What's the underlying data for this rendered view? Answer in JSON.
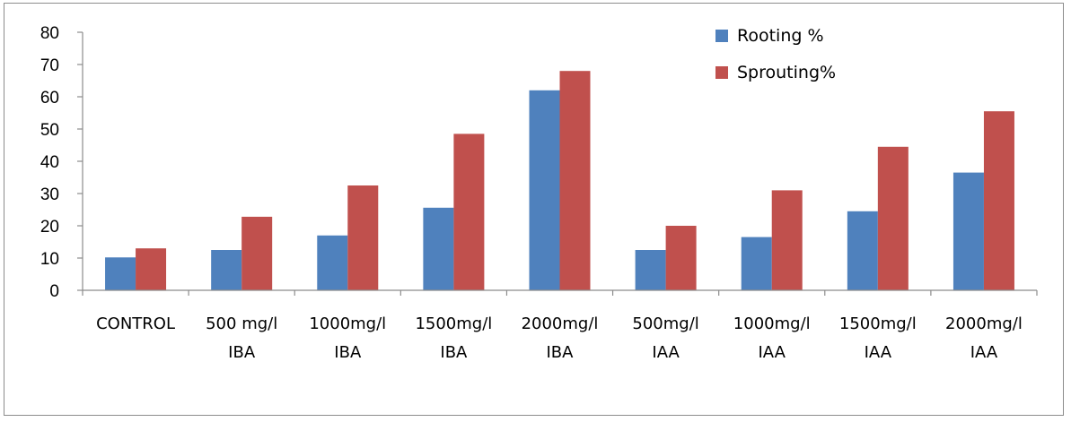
{
  "chart_data": {
    "type": "bar",
    "categories": [
      [
        "CONTROL"
      ],
      [
        "500 mg/l",
        "IBA"
      ],
      [
        "1000mg/l",
        "IBA"
      ],
      [
        "1500mg/l",
        "IBA"
      ],
      [
        "2000mg/l",
        "IBA"
      ],
      [
        "500mg/l",
        "IAA"
      ],
      [
        "1000mg/l",
        "IAA"
      ],
      [
        "1500mg/l",
        "IAA"
      ],
      [
        "2000mg/l",
        "IAA"
      ]
    ],
    "series": [
      {
        "name": "Rooting %",
        "color": "#4f81bd",
        "values": [
          10.2,
          12.5,
          17,
          25.6,
          62,
          12.5,
          16.5,
          24.5,
          36.5
        ]
      },
      {
        "name": "Sprouting%",
        "color": "#c0504d",
        "values": [
          13,
          22.8,
          32.5,
          48.5,
          68,
          20,
          31,
          44.5,
          55.5
        ]
      }
    ],
    "ylim": [
      0,
      80
    ],
    "yticks": [
      0,
      10,
      20,
      30,
      40,
      50,
      60,
      70,
      80
    ],
    "grid": false,
    "legend_position": "top-right"
  }
}
